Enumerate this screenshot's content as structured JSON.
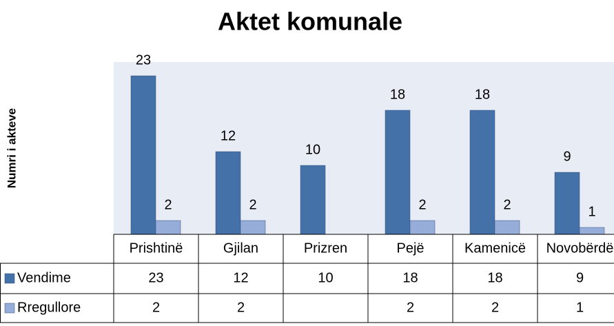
{
  "chart_data": {
    "type": "bar",
    "title": "Aktet komunale",
    "y_label": "Numri i akteve",
    "categories": [
      "Prishtinë",
      "Gjilan",
      "Prizren",
      "Pejë",
      "Kamenicë",
      "Novobërdë"
    ],
    "series": [
      {
        "name": "Vendime",
        "color": "#4471a8",
        "values": [
          23,
          12,
          10,
          18,
          18,
          9
        ]
      },
      {
        "name": "Rregullore",
        "color": "#96acd9",
        "values": [
          2,
          2,
          null,
          2,
          2,
          1
        ]
      }
    ],
    "ylim": [
      0,
      25
    ],
    "plot_background": "#e8ecf4"
  }
}
